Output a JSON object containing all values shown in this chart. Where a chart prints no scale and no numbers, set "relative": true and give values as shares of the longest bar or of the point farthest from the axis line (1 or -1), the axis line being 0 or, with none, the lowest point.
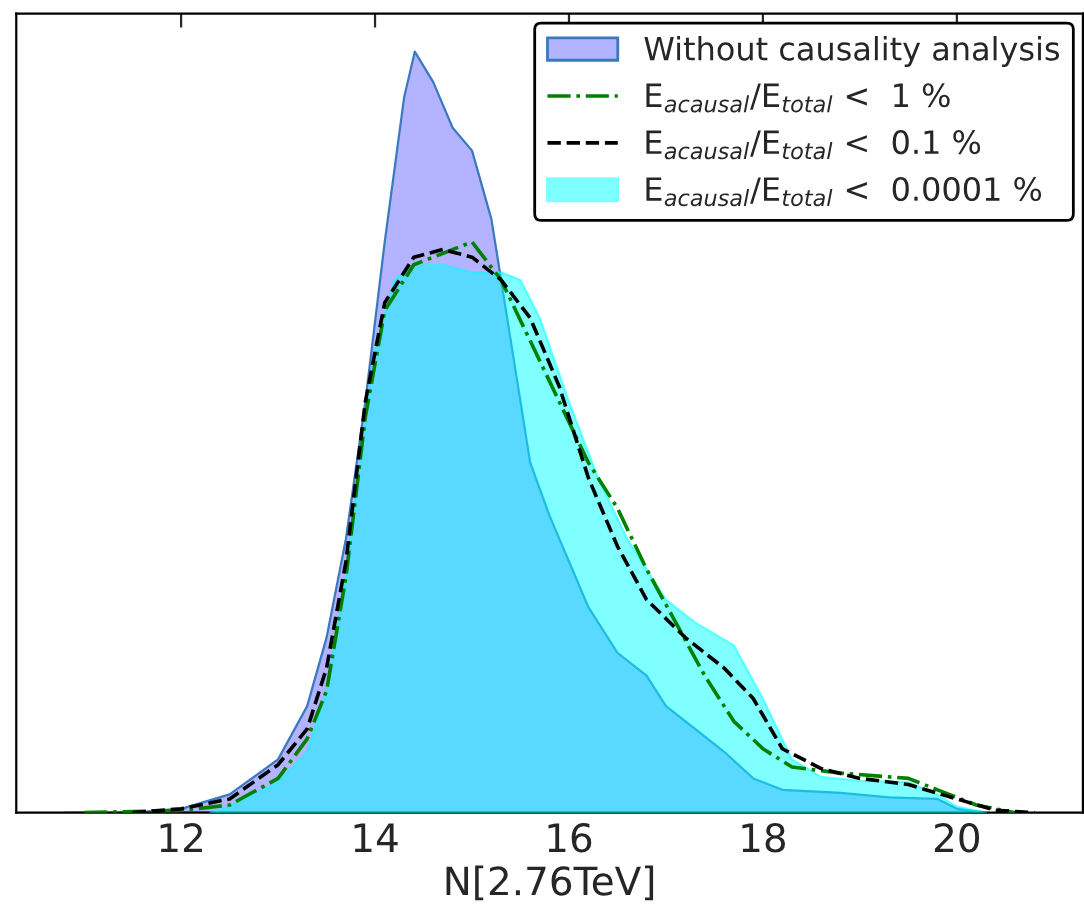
{
  "chart_data": {
    "type": "area",
    "relative": true,
    "xlabel": "N[2.76TeV]",
    "xlim": [
      10.3,
      21.3
    ],
    "xticks": [
      12,
      14,
      16,
      18,
      20
    ],
    "legend": "top right",
    "grid": false,
    "series": [
      {
        "name": "Without causality analysis",
        "color": "#b3b3ff",
        "x": [
          10.8,
          11.5,
          12,
          12.5,
          13,
          13.3,
          13.5,
          13.7,
          13.9,
          14.1,
          14.3,
          14.41,
          14.6,
          14.8,
          15.0,
          15.2,
          15.4,
          15.6,
          15.8,
          16.0,
          16.2,
          16.5,
          16.8,
          17.0,
          17.3,
          17.6,
          17.9,
          18.2,
          18.8,
          19.3,
          19.8,
          20.0,
          20.3
        ],
        "values": [
          0,
          0,
          0.005,
          0.024,
          0.07,
          0.14,
          0.23,
          0.36,
          0.54,
          0.75,
          0.94,
          1.0,
          0.96,
          0.9,
          0.87,
          0.78,
          0.62,
          0.46,
          0.39,
          0.33,
          0.27,
          0.21,
          0.18,
          0.14,
          0.11,
          0.08,
          0.045,
          0.03,
          0.026,
          0.02,
          0.018,
          0.005,
          0
        ]
      },
      {
        "name": "E$_{acausal}$/E$_{total}$ <  1 %",
        "type": "line",
        "line_style": "dashdot",
        "color": "#008000",
        "x": [
          11.0,
          12,
          12.5,
          13,
          13.3,
          13.5,
          13.7,
          13.9,
          14.1,
          14.4,
          14.7,
          15.0,
          15.3,
          15.6,
          15.9,
          16.2,
          16.5,
          16.8,
          17.1,
          17.4,
          17.7,
          18.0,
          18.3,
          18.8,
          19.5,
          19.8,
          20.2,
          20.6
        ],
        "values": [
          0,
          0.003,
          0.01,
          0.045,
          0.097,
          0.16,
          0.31,
          0.52,
          0.66,
          0.72,
          0.735,
          0.75,
          0.7,
          0.62,
          0.54,
          0.46,
          0.4,
          0.32,
          0.25,
          0.18,
          0.12,
          0.084,
          0.06,
          0.052,
          0.045,
          0.03,
          0.01,
          0
        ]
      },
      {
        "name": "E$_{acausal}$/E$_{total}$ <  0.1 %",
        "type": "line",
        "line_style": "dashed",
        "color": "#000000",
        "x": [
          11.5,
          12,
          12.5,
          13,
          13.3,
          13.5,
          13.7,
          13.9,
          14.1,
          14.4,
          14.7,
          15.0,
          15.3,
          15.6,
          15.9,
          16.2,
          16.5,
          16.8,
          17.2,
          17.6,
          17.9,
          18.2,
          18.6,
          19.0,
          19.5,
          20.0,
          20.4,
          20.8
        ],
        "values": [
          0,
          0.005,
          0.018,
          0.063,
          0.11,
          0.19,
          0.33,
          0.54,
          0.67,
          0.73,
          0.74,
          0.73,
          0.7,
          0.65,
          0.56,
          0.44,
          0.35,
          0.28,
          0.23,
          0.19,
          0.15,
          0.084,
          0.058,
          0.045,
          0.037,
          0.018,
          0.003,
          0
        ]
      },
      {
        "name": "E$_{acausal}$/E$_{total}$ <  0.0001 %",
        "color": "#00ffff",
        "x": [
          12.3,
          12.5,
          13,
          13.3,
          13.5,
          13.7,
          13.9,
          14.0,
          14.2,
          14.4,
          14.7,
          15.0,
          15.3,
          15.5,
          15.7,
          16.0,
          16.3,
          16.6,
          17.0,
          17.3,
          17.7,
          18.0,
          18.3,
          18.6,
          19.0,
          19.5,
          19.8,
          20.0,
          20.3
        ],
        "values": [
          0,
          0.008,
          0.04,
          0.08,
          0.16,
          0.31,
          0.52,
          0.61,
          0.7,
          0.72,
          0.72,
          0.71,
          0.71,
          0.7,
          0.65,
          0.54,
          0.44,
          0.36,
          0.28,
          0.25,
          0.22,
          0.15,
          0.07,
          0.047,
          0.042,
          0.04,
          0.024,
          0.008,
          0
        ]
      }
    ]
  }
}
